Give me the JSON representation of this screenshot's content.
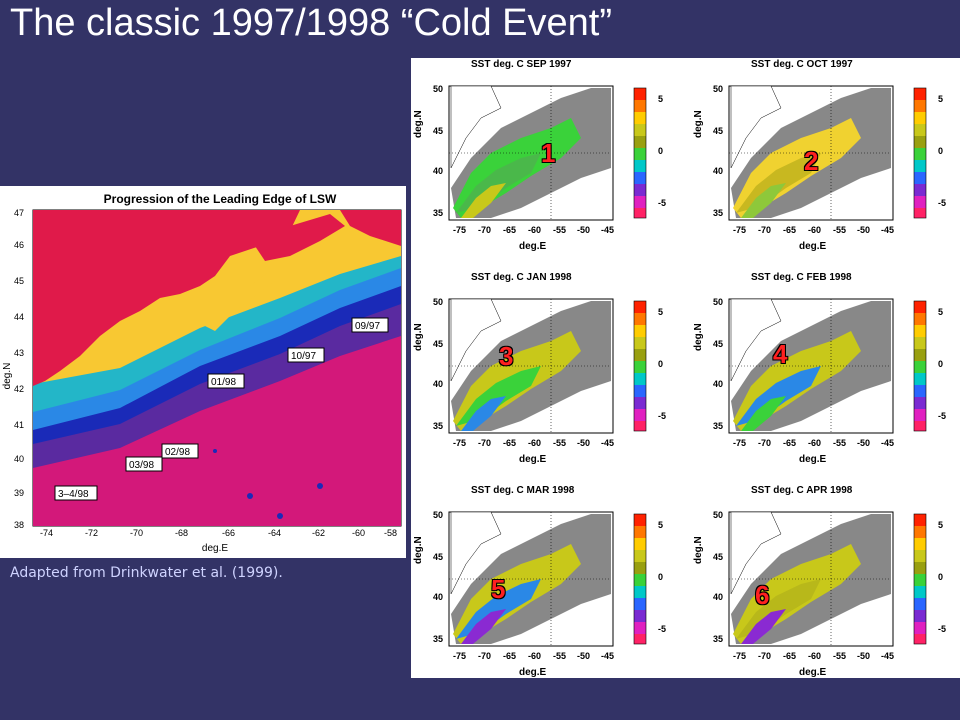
{
  "slide": {
    "title": "The classic 1997/1998 “Cold Event”",
    "caption": "Adapted from Drinkwater et al. (1999)."
  },
  "left_figure": {
    "title": "Progression of the Leading Edge of LSW",
    "xlabel": "deg.E",
    "ylabel": "deg.N",
    "xticks": [
      "-74",
      "-72",
      "-70",
      "-68",
      "-66",
      "-64",
      "-62",
      "-60",
      "-58"
    ],
    "yticks": [
      "47",
      "46",
      "45",
      "44",
      "43",
      "42",
      "41",
      "40",
      "39",
      "38"
    ],
    "labels": [
      "09/97",
      "10/97",
      "01/98",
      "02/98",
      "03/98",
      "3–4/98"
    ]
  },
  "right_figure": {
    "xticks": [
      "-75",
      "-70",
      "-65",
      "-60",
      "-55",
      "-50",
      "-45"
    ],
    "yticks": [
      "50",
      "45",
      "40",
      "35"
    ],
    "cbticks": [
      "5",
      "0",
      "-5"
    ],
    "xlabel": "deg.E",
    "ylabel": "deg.N",
    "panels": [
      {
        "title": "SST deg. C   SEP  1997",
        "marker": "1"
      },
      {
        "title": "SST deg. C   OCT  1997",
        "marker": "2"
      },
      {
        "title": "SST deg. C  JAN  1998",
        "marker": "3"
      },
      {
        "title": "SST deg. C  FEB  1998",
        "marker": "4"
      },
      {
        "title": "SST deg. C  MAR  1998",
        "marker": "5"
      },
      {
        "title": "SST deg. C  APR  1998",
        "marker": "6"
      }
    ]
  },
  "colors": {
    "background": "#333366",
    "land": "#dd1144",
    "shelf": "#f8c832",
    "slope_blue": "#2277dd",
    "deep": "#cc1177"
  }
}
